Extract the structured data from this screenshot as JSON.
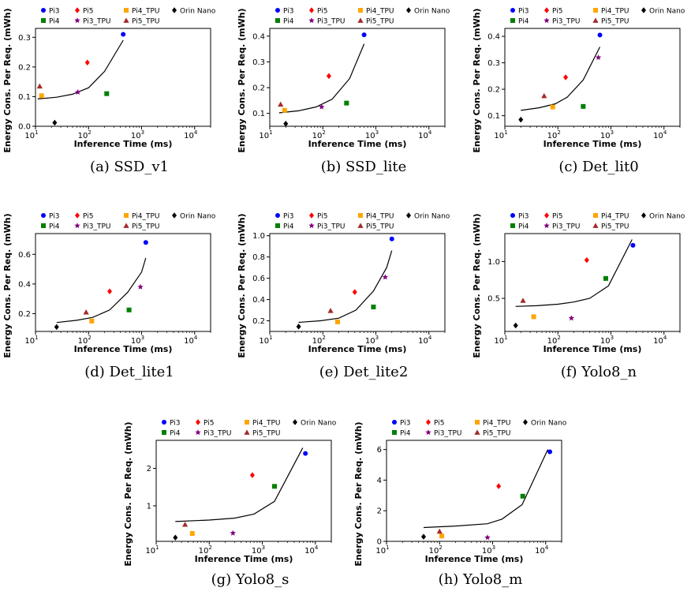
{
  "chart_data": [
    {
      "caption": "(a) SSD_v1",
      "type": "scatter",
      "xscale": "log",
      "xlim": [
        10,
        20000
      ],
      "ylim": [
        0,
        0.33
      ],
      "yticks": [
        0.0,
        0.1,
        0.2,
        0.3
      ],
      "yticklabels": [
        "0.0",
        "0.1",
        "0.2",
        "0.3"
      ],
      "xlabel": "Inference Time (ms)",
      "ylabel": "Energy Cons. Per Req. (mWh)",
      "points": [
        {
          "label": "Pi3",
          "x": 450,
          "y": 0.31
        },
        {
          "label": "Pi5",
          "x": 95,
          "y": 0.215
        },
        {
          "label": "Pi4",
          "x": 220,
          "y": 0.11
        },
        {
          "label": "Pi3_TPU",
          "x": 63,
          "y": 0.115
        },
        {
          "label": "Pi4_TPU",
          "x": 13,
          "y": 0.103
        },
        {
          "label": "Pi5_TPU",
          "x": 12,
          "y": 0.135
        },
        {
          "label": "Orin Nano",
          "x": 23,
          "y": 0.012
        }
      ],
      "curve": [
        [
          11,
          0.092
        ],
        [
          25,
          0.098
        ],
        [
          50,
          0.108
        ],
        [
          100,
          0.13
        ],
        [
          200,
          0.185
        ],
        [
          450,
          0.29
        ]
      ]
    },
    {
      "caption": "(b) SSD_lite",
      "type": "scatter",
      "xscale": "log",
      "xlim": [
        10,
        20000
      ],
      "ylim": [
        0.05,
        0.43
      ],
      "yticks": [
        0.1,
        0.2,
        0.3,
        0.4
      ],
      "yticklabels": [
        "0.1",
        "0.2",
        "0.3",
        "0.4"
      ],
      "xlabel": "Inference Time (ms)",
      "ylabel": "Energy Cons. Per Req. (mWh)",
      "points": [
        {
          "label": "Pi3",
          "x": 600,
          "y": 0.405
        },
        {
          "label": "Pi5",
          "x": 130,
          "y": 0.245
        },
        {
          "label": "Pi4",
          "x": 280,
          "y": 0.14
        },
        {
          "label": "Pi3_TPU",
          "x": 95,
          "y": 0.125
        },
        {
          "label": "Pi4_TPU",
          "x": 19,
          "y": 0.112
        },
        {
          "label": "Pi5_TPU",
          "x": 16,
          "y": 0.135
        },
        {
          "label": "Orin Nano",
          "x": 20,
          "y": 0.06
        }
      ],
      "curve": [
        [
          15,
          0.102
        ],
        [
          35,
          0.11
        ],
        [
          75,
          0.125
        ],
        [
          150,
          0.155
        ],
        [
          320,
          0.235
        ],
        [
          600,
          0.37
        ]
      ]
    },
    {
      "caption": "(c) Det_lit0",
      "type": "scatter",
      "xscale": "log",
      "xlim": [
        10,
        20000
      ],
      "ylim": [
        0.06,
        0.43
      ],
      "yticks": [
        0.1,
        0.2,
        0.3,
        0.4
      ],
      "yticklabels": [
        "0.1",
        "0.2",
        "0.3",
        "0.4"
      ],
      "xlabel": "Inference Time (ms)",
      "ylabel": "Energy Cons. Per Req. (mWh)",
      "points": [
        {
          "label": "Pi3",
          "x": 620,
          "y": 0.405
        },
        {
          "label": "Pi5",
          "x": 140,
          "y": 0.245
        },
        {
          "label": "Pi4",
          "x": 300,
          "y": 0.135
        },
        {
          "label": "Pi3_TPU",
          "x": 580,
          "y": 0.32
        },
        {
          "label": "Pi4_TPU",
          "x": 80,
          "y": 0.133
        },
        {
          "label": "Pi5_TPU",
          "x": 55,
          "y": 0.175
        },
        {
          "label": "Orin Nano",
          "x": 20,
          "y": 0.085
        }
      ],
      "curve": [
        [
          20,
          0.12
        ],
        [
          45,
          0.13
        ],
        [
          90,
          0.145
        ],
        [
          150,
          0.17
        ],
        [
          300,
          0.235
        ],
        [
          620,
          0.36
        ]
      ]
    },
    {
      "caption": "(d) Det_lite1",
      "type": "scatter",
      "xscale": "log",
      "xlim": [
        10,
        20000
      ],
      "ylim": [
        0.08,
        0.74
      ],
      "yticks": [
        0.2,
        0.4,
        0.6
      ],
      "yticklabels": [
        "0.2",
        "0.4",
        "0.6"
      ],
      "xlabel": "Inference Time (ms)",
      "ylabel": "Energy Cons. Per Req. (mWh)",
      "points": [
        {
          "label": "Pi3",
          "x": 1200,
          "y": 0.68
        },
        {
          "label": "Pi5",
          "x": 250,
          "y": 0.35
        },
        {
          "label": "Pi4",
          "x": 580,
          "y": 0.225
        },
        {
          "label": "Pi3_TPU",
          "x": 950,
          "y": 0.38
        },
        {
          "label": "Pi4_TPU",
          "x": 115,
          "y": 0.15
        },
        {
          "label": "Pi5_TPU",
          "x": 90,
          "y": 0.21
        },
        {
          "label": "Orin Nano",
          "x": 25,
          "y": 0.11
        }
      ],
      "curve": [
        [
          25,
          0.14
        ],
        [
          60,
          0.155
        ],
        [
          120,
          0.175
        ],
        [
          250,
          0.225
        ],
        [
          550,
          0.345
        ],
        [
          1000,
          0.48
        ],
        [
          1200,
          0.575
        ]
      ]
    },
    {
      "caption": "(e) Det_lite2",
      "type": "scatter",
      "xscale": "log",
      "xlim": [
        10,
        20000
      ],
      "ylim": [
        0.1,
        1.02
      ],
      "yticks": [
        0.2,
        0.4,
        0.6,
        0.8,
        1.0
      ],
      "yticklabels": [
        "0.2",
        "0.4",
        "0.6",
        "0.8",
        "1.0"
      ],
      "xlabel": "Inference Time (ms)",
      "ylabel": "Energy Cons. Per Req. (mWh)",
      "points": [
        {
          "label": "Pi3",
          "x": 2000,
          "y": 0.97
        },
        {
          "label": "Pi5",
          "x": 400,
          "y": 0.47
        },
        {
          "label": "Pi4",
          "x": 900,
          "y": 0.33
        },
        {
          "label": "Pi3_TPU",
          "x": 1500,
          "y": 0.61
        },
        {
          "label": "Pi4_TPU",
          "x": 190,
          "y": 0.19
        },
        {
          "label": "Pi5_TPU",
          "x": 140,
          "y": 0.295
        },
        {
          "label": "Orin Nano",
          "x": 35,
          "y": 0.145
        }
      ],
      "curve": [
        [
          35,
          0.185
        ],
        [
          90,
          0.2
        ],
        [
          200,
          0.225
        ],
        [
          420,
          0.3
        ],
        [
          900,
          0.48
        ],
        [
          1600,
          0.7
        ],
        [
          2000,
          0.86
        ]
      ]
    },
    {
      "caption": "(f) Yolo8_n",
      "type": "scatter",
      "xscale": "log",
      "xlim": [
        10,
        20000
      ],
      "ylim": [
        0.05,
        1.38
      ],
      "yticks": [
        0.5,
        1.0
      ],
      "yticklabels": [
        "0.5",
        "1.0"
      ],
      "xlabel": "Inference Time (ms)",
      "ylabel": "Energy Cons. Per Req. (mWh)",
      "points": [
        {
          "label": "Pi3",
          "x": 2600,
          "y": 1.22
        },
        {
          "label": "Pi5",
          "x": 350,
          "y": 1.02
        },
        {
          "label": "Pi4",
          "x": 800,
          "y": 0.77
        },
        {
          "label": "Pi3_TPU",
          "x": 180,
          "y": 0.23
        },
        {
          "label": "Pi4_TPU",
          "x": 35,
          "y": 0.25
        },
        {
          "label": "Pi5_TPU",
          "x": 22,
          "y": 0.47
        },
        {
          "label": "Orin Nano",
          "x": 16,
          "y": 0.13
        }
      ],
      "curve": [
        [
          16,
          0.39
        ],
        [
          40,
          0.4
        ],
        [
          100,
          0.42
        ],
        [
          200,
          0.45
        ],
        [
          400,
          0.5
        ],
        [
          900,
          0.67
        ],
        [
          2500,
          1.3
        ]
      ]
    },
    {
      "caption": "(g) Yolo8_s",
      "type": "scatter",
      "xscale": "log",
      "xlim": [
        10,
        20000
      ],
      "ylim": [
        0.05,
        2.75
      ],
      "yticks": [
        1,
        2
      ],
      "yticklabels": [
        "1",
        "2"
      ],
      "xlabel": "Inference Time (ms)",
      "ylabel": "Energy Cons. Per Req. (mWh)",
      "points": [
        {
          "label": "Pi3",
          "x": 6500,
          "y": 2.4
        },
        {
          "label": "Pi5",
          "x": 650,
          "y": 1.82
        },
        {
          "label": "Pi4",
          "x": 1700,
          "y": 1.52
        },
        {
          "label": "Pi3_TPU",
          "x": 280,
          "y": 0.27
        },
        {
          "label": "Pi4_TPU",
          "x": 48,
          "y": 0.26
        },
        {
          "label": "Pi5_TPU",
          "x": 35,
          "y": 0.5
        },
        {
          "label": "Orin Nano",
          "x": 23,
          "y": 0.15
        }
      ],
      "curve": [
        [
          23,
          0.58
        ],
        [
          100,
          0.62
        ],
        [
          300,
          0.67
        ],
        [
          700,
          0.78
        ],
        [
          1700,
          1.12
        ],
        [
          5800,
          2.55
        ]
      ]
    },
    {
      "caption": "(h) Yolo8_m",
      "type": "scatter",
      "xscale": "log",
      "xlim": [
        10,
        20000
      ],
      "ylim": [
        0,
        6.6
      ],
      "yticks": [
        0,
        2,
        4,
        6
      ],
      "yticklabels": [
        "0",
        "2",
        "4",
        "6"
      ],
      "xlabel": "Inference Time (ms)",
      "ylabel": "Energy Cons. Per Req. (mWh)",
      "points": [
        {
          "label": "Pi3",
          "x": 12000,
          "y": 5.85
        },
        {
          "label": "Pi5",
          "x": 1300,
          "y": 3.6
        },
        {
          "label": "Pi4",
          "x": 3700,
          "y": 2.95
        },
        {
          "label": "Pi3_TPU",
          "x": 800,
          "y": 0.25
        },
        {
          "label": "Pi4_TPU",
          "x": 110,
          "y": 0.35
        },
        {
          "label": "Pi5_TPU",
          "x": 100,
          "y": 0.65
        },
        {
          "label": "Orin Nano",
          "x": 50,
          "y": 0.3
        }
      ],
      "curve": [
        [
          50,
          0.9
        ],
        [
          200,
          1.0
        ],
        [
          800,
          1.15
        ],
        [
          1500,
          1.45
        ],
        [
          3600,
          2.4
        ],
        [
          11000,
          6.0
        ]
      ]
    }
  ],
  "legend": [
    {
      "label": "Pi3",
      "marker": "circle",
      "color": "#0000ff"
    },
    {
      "label": "Pi5",
      "marker": "diamond",
      "color": "#ff0000"
    },
    {
      "label": "Pi4_TPU",
      "marker": "square",
      "color": "#ffa500"
    },
    {
      "label": "Orin Nano",
      "marker": "diamond",
      "color": "#000000"
    },
    {
      "label": "Pi4",
      "marker": "square",
      "color": "#008000"
    },
    {
      "label": "Pi3_TPU",
      "marker": "star",
      "color": "#800080"
    },
    {
      "label": "Pi5_TPU",
      "marker": "triangle",
      "color": "#a52a2a"
    }
  ],
  "x_ticks": [
    {
      "value": 10,
      "label": "10",
      "exp": "1"
    },
    {
      "value": 100,
      "label": "10",
      "exp": "2"
    },
    {
      "value": 1000,
      "label": "10",
      "exp": "3"
    },
    {
      "value": 10000,
      "label": "10",
      "exp": "4"
    }
  ],
  "curve_color": "#000000"
}
